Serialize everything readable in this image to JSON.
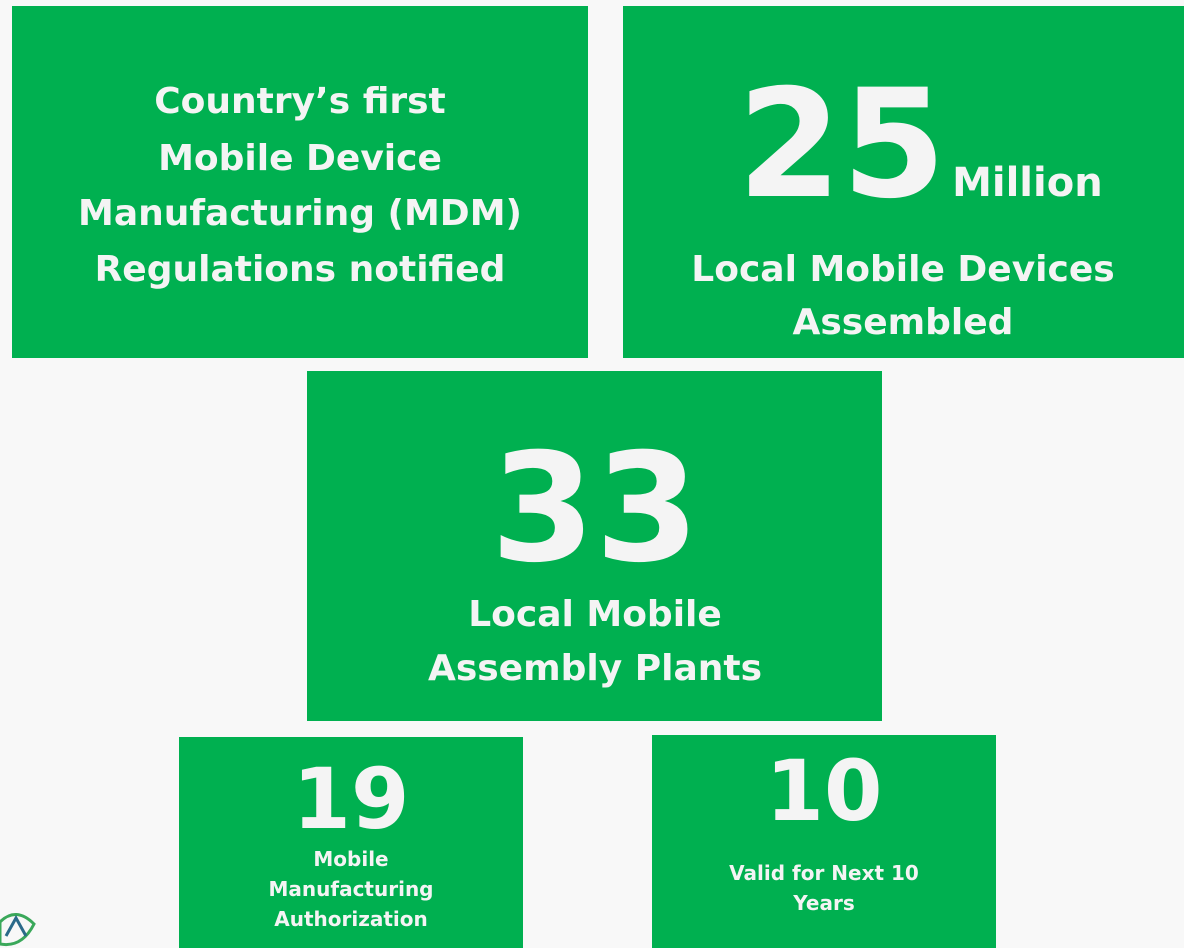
{
  "boxes": [
    {
      "lines": [
        "Country’s first",
        "Mobile Device",
        "Manufacturing (MDM)",
        "Regulations notified"
      ]
    },
    {
      "figure": "25",
      "unit": "Million",
      "lines": [
        "Local Mobile Devices",
        "Assembled"
      ]
    },
    {
      "figure": "33",
      "lines": [
        "Local Mobile",
        "Assembly Plants"
      ]
    },
    {
      "figure": "19",
      "lines": [
        "Mobile",
        "Manufacturing",
        "Authorization"
      ]
    },
    {
      "figure": "10",
      "lines": [
        "Valid for Next 10",
        "Years"
      ]
    }
  ]
}
